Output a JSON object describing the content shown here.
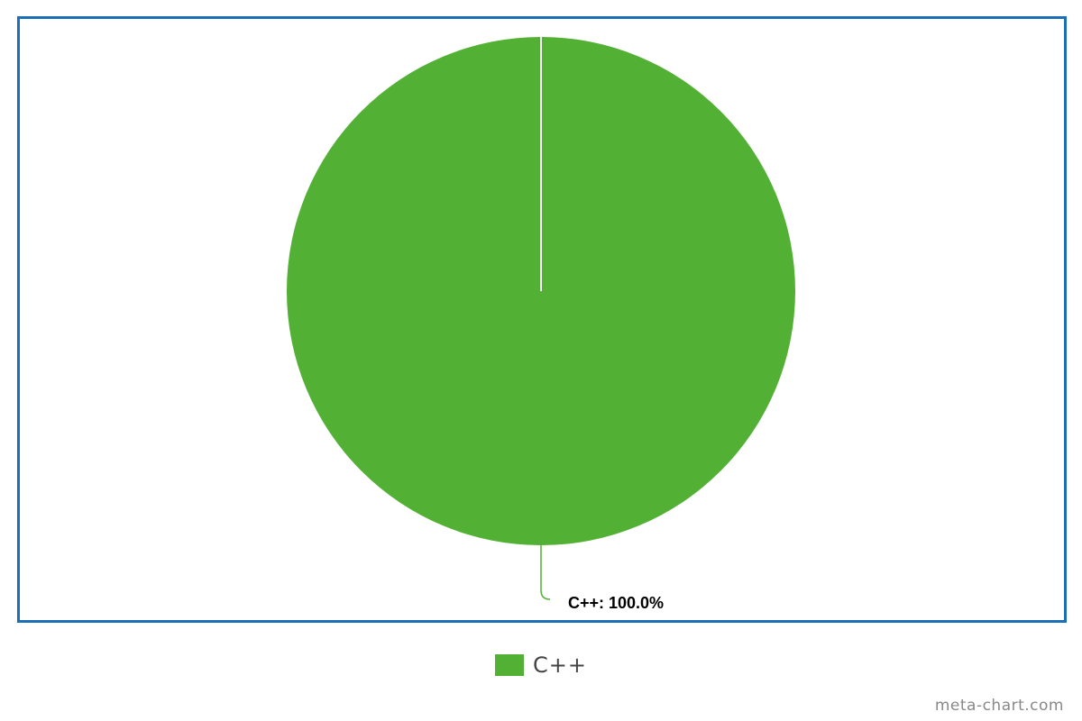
{
  "chart_data": {
    "type": "pie",
    "slices": [
      {
        "label": "C++",
        "value": 100.0,
        "color": "#52b134",
        "data_label": "C++: 100.0%"
      }
    ],
    "legend_placement": "bottom",
    "frame_color": "#1c6fb6"
  },
  "legend": {
    "items": [
      {
        "label": "C++",
        "color": "#52b134"
      }
    ]
  },
  "credit": "meta-chart.com"
}
